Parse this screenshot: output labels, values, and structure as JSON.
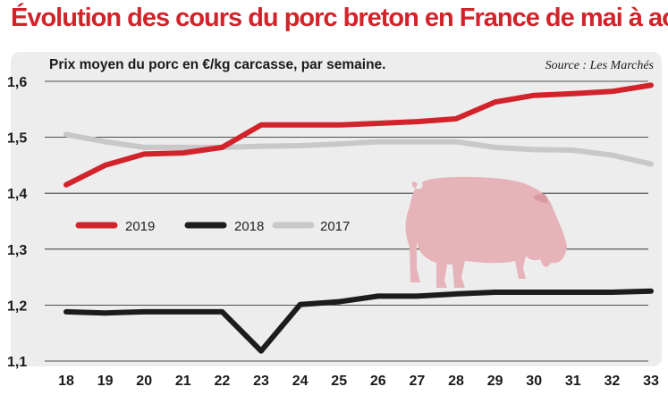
{
  "title": "Évolution des cours du porc breton en France de mai à août",
  "subtitle": "Prix moyen du porc en €/kg carcasse, par semaine.",
  "source": "Source : Les Marchés",
  "colors": {
    "title": "#d2232a",
    "s2019": "#d2232a",
    "s2018": "#1c1c1c",
    "s2017": "#c8c8c8",
    "panel": "#ededed",
    "pig": "#e6b3b8"
  },
  "icon": "pig-illustration",
  "chart_data": {
    "type": "line",
    "title": "Évolution des cours du porc breton en France de mai à août",
    "subtitle": "Prix moyen du porc en €/kg carcasse, par semaine.",
    "x": [
      "18",
      "19",
      "20",
      "21",
      "22",
      "23",
      "24",
      "25",
      "26",
      "27",
      "28",
      "29",
      "30",
      "31",
      "32",
      "33"
    ],
    "ylim": [
      1.1,
      1.6
    ],
    "yticks": [
      "1,1",
      "1,2",
      "1,3",
      "1,4",
      "1,5",
      "1,6"
    ],
    "grid": true,
    "legend_position": "left-middle",
    "series": [
      {
        "name": "2019",
        "color": "#d2232a",
        "values": [
          1.415,
          1.45,
          1.47,
          1.472,
          1.482,
          1.522,
          1.522,
          1.522,
          1.525,
          1.528,
          1.533,
          1.563,
          1.575,
          1.578,
          1.582,
          1.593
        ]
      },
      {
        "name": "2018",
        "color": "#1c1c1c",
        "values": [
          1.188,
          1.186,
          1.188,
          1.188,
          1.188,
          1.118,
          1.201,
          1.206,
          1.216,
          1.216,
          1.22,
          1.223,
          1.223,
          1.223,
          1.223,
          1.225
        ]
      },
      {
        "name": "2017",
        "color": "#c8c8c8",
        "values": [
          1.505,
          1.492,
          1.482,
          1.482,
          1.482,
          1.484,
          1.485,
          1.488,
          1.492,
          1.492,
          1.492,
          1.482,
          1.478,
          1.477,
          1.468,
          1.452
        ]
      }
    ]
  }
}
